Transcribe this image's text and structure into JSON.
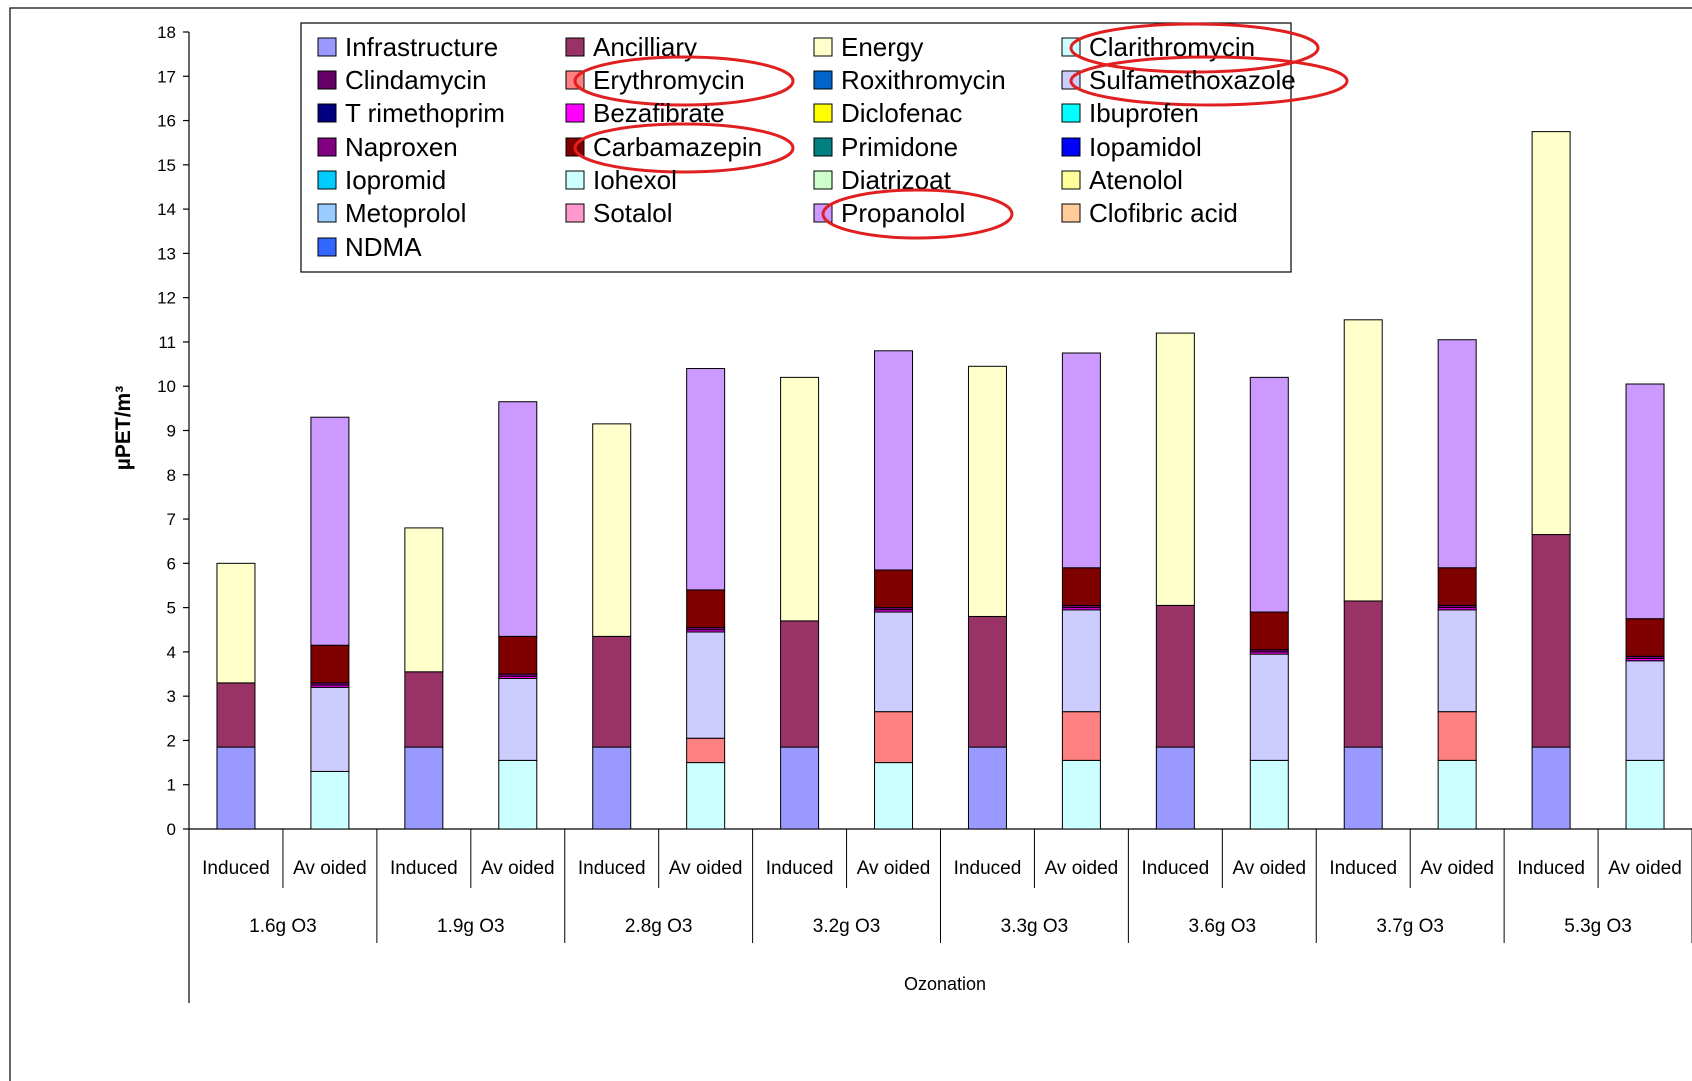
{
  "chart_data": {
    "type": "bar",
    "stacked": true,
    "ylabel": "µPET/m³",
    "xlabel": "Ozonation",
    "ylim": [
      0,
      18
    ],
    "yticks": [
      0,
      1,
      2,
      3,
      4,
      5,
      6,
      7,
      8,
      9,
      10,
      11,
      12,
      13,
      14,
      15,
      16,
      17,
      18
    ],
    "groups": [
      "1.6g O3",
      "1.9g O3",
      "2.8g O3",
      "3.2g O3",
      "3.3g O3",
      "3.6g O3",
      "3.7g O3",
      "5.3g O3"
    ],
    "subcategories": [
      "Induced",
      "Av oided"
    ],
    "categories": [
      "Induced",
      "Av oided",
      "Induced",
      "Av oided",
      "Induced",
      "Av oided",
      "Induced",
      "Av oided",
      "Induced",
      "Av oided",
      "Induced",
      "Av oided",
      "Induced",
      "Av oided",
      "Induced",
      "Av oided"
    ],
    "legend": {
      "position": "top"
    },
    "series": [
      {
        "name": "Infrastructure",
        "color": "#9999FF",
        "values": [
          1.85,
          0,
          1.85,
          0,
          1.85,
          0,
          1.85,
          0,
          1.85,
          0,
          1.85,
          0,
          1.85,
          0,
          1.85,
          0
        ]
      },
      {
        "name": "Ancilliary",
        "color": "#993366",
        "values": [
          1.45,
          0,
          1.7,
          0,
          2.5,
          0,
          2.85,
          0,
          2.95,
          0,
          3.2,
          0,
          3.3,
          0,
          4.8,
          0
        ]
      },
      {
        "name": "Energy",
        "color": "#FFFFCC",
        "values": [
          2.7,
          0,
          3.25,
          0,
          4.8,
          0,
          5.5,
          0,
          5.65,
          0,
          6.15,
          0,
          6.35,
          0,
          9.1,
          0
        ]
      },
      {
        "name": "Clarithromycin",
        "color": "#CCFFFF",
        "values": [
          0,
          1.3,
          0,
          1.55,
          0,
          1.5,
          0,
          1.5,
          0,
          1.55,
          0,
          1.55,
          0,
          1.55,
          0,
          1.55
        ]
      },
      {
        "name": "Clindamycin",
        "color": "#660066",
        "values": [
          0,
          0,
          0,
          0,
          0,
          0,
          0,
          0,
          0,
          0,
          0,
          0,
          0,
          0,
          0,
          0
        ]
      },
      {
        "name": "Erythromycin",
        "color": "#FF8080",
        "values": [
          0,
          0,
          0,
          0,
          0,
          0.55,
          0,
          1.15,
          0,
          1.1,
          0,
          0,
          0,
          1.1,
          0,
          0
        ]
      },
      {
        "name": "Roxithromycin",
        "color": "#0066CC",
        "values": [
          0,
          0,
          0,
          0,
          0,
          0,
          0,
          0,
          0,
          0,
          0,
          0,
          0,
          0,
          0,
          0
        ]
      },
      {
        "name": "Sulfamethoxazole",
        "color": "#CCCCFF",
        "values": [
          0,
          1.9,
          0,
          1.85,
          0,
          2.4,
          0,
          2.25,
          0,
          2.3,
          0,
          2.4,
          0,
          2.3,
          0,
          2.25
        ]
      },
      {
        "name": "T rimethoprim",
        "color": "#000080",
        "values": [
          0,
          0,
          0,
          0,
          0,
          0,
          0,
          0,
          0,
          0,
          0,
          0,
          0,
          0,
          0,
          0
        ]
      },
      {
        "name": "Bezafibrate",
        "color": "#FF00FF",
        "values": [
          0,
          0.05,
          0,
          0.05,
          0,
          0.05,
          0,
          0.05,
          0,
          0.05,
          0,
          0.05,
          0,
          0.05,
          0,
          0.05
        ]
      },
      {
        "name": "Diclofenac",
        "color": "#FFFF00",
        "values": [
          0,
          0,
          0,
          0,
          0,
          0,
          0,
          0,
          0,
          0,
          0,
          0,
          0,
          0,
          0,
          0
        ]
      },
      {
        "name": "Ibuprofen",
        "color": "#00FFFF",
        "values": [
          0,
          0,
          0,
          0,
          0,
          0,
          0,
          0,
          0,
          0,
          0,
          0,
          0,
          0,
          0,
          0
        ]
      },
      {
        "name": "Naproxen",
        "color": "#800080",
        "values": [
          0,
          0.05,
          0,
          0.05,
          0,
          0.05,
          0,
          0.05,
          0,
          0.05,
          0,
          0.05,
          0,
          0.05,
          0,
          0.05
        ]
      },
      {
        "name": "Carbamazepin",
        "color": "#800000",
        "values": [
          0,
          0.85,
          0,
          0.85,
          0,
          0.85,
          0,
          0.85,
          0,
          0.85,
          0,
          0.85,
          0,
          0.85,
          0,
          0.85
        ]
      },
      {
        "name": "Primidone",
        "color": "#008080",
        "values": [
          0,
          0,
          0,
          0,
          0,
          0,
          0,
          0,
          0,
          0,
          0,
          0,
          0,
          0,
          0,
          0
        ]
      },
      {
        "name": "Iopamidol",
        "color": "#0000FF",
        "values": [
          0,
          0,
          0,
          0,
          0,
          0,
          0,
          0,
          0,
          0,
          0,
          0,
          0,
          0,
          0,
          0
        ]
      },
      {
        "name": "Iopromid",
        "color": "#00CCFF",
        "values": [
          0,
          0,
          0,
          0,
          0,
          0,
          0,
          0,
          0,
          0,
          0,
          0,
          0,
          0,
          0,
          0
        ]
      },
      {
        "name": "Iohexol",
        "color": "#CCFFFF",
        "values": [
          0,
          0,
          0,
          0,
          0,
          0,
          0,
          0,
          0,
          0,
          0,
          0,
          0,
          0,
          0,
          0
        ]
      },
      {
        "name": "Diatrizoat",
        "color": "#CCFFCC",
        "values": [
          0,
          0,
          0,
          0,
          0,
          0,
          0,
          0,
          0,
          0,
          0,
          0,
          0,
          0,
          0,
          0
        ]
      },
      {
        "name": "Atenolol",
        "color": "#FFFF99",
        "values": [
          0,
          0,
          0,
          0,
          0,
          0,
          0,
          0,
          0,
          0,
          0,
          0,
          0,
          0,
          0,
          0
        ]
      },
      {
        "name": "Metoprolol",
        "color": "#99CCFF",
        "values": [
          0,
          0,
          0,
          0,
          0,
          0,
          0,
          0,
          0,
          0,
          0,
          0,
          0,
          0,
          0,
          0
        ]
      },
      {
        "name": "Sotalol",
        "color": "#FF99CC",
        "values": [
          0,
          0,
          0,
          0,
          0,
          0,
          0,
          0,
          0,
          0,
          0,
          0,
          0,
          0,
          0,
          0
        ]
      },
      {
        "name": "Propanolol",
        "color": "#CC99FF",
        "values": [
          0,
          5.15,
          0,
          5.3,
          0,
          5.0,
          0,
          4.95,
          0,
          4.85,
          0,
          5.3,
          0,
          5.15,
          0,
          5.3
        ]
      },
      {
        "name": "Clofibric acid",
        "color": "#FFCC99",
        "values": [
          0,
          0,
          0,
          0,
          0,
          0,
          0,
          0,
          0,
          0,
          0,
          0,
          0,
          0,
          0,
          0
        ]
      },
      {
        "name": "NDMA",
        "color": "#3366FF",
        "values": [
          0,
          0,
          0,
          0,
          0,
          0,
          0,
          0,
          0,
          0,
          0,
          0,
          0,
          0,
          0,
          0
        ]
      }
    ],
    "highlighted_legend_entries": [
      "Clarithromycin",
      "Erythromycin",
      "Sulfamethoxazole",
      "Carbamazepin",
      "Propanolol"
    ],
    "highlight_color": "#E02020"
  }
}
